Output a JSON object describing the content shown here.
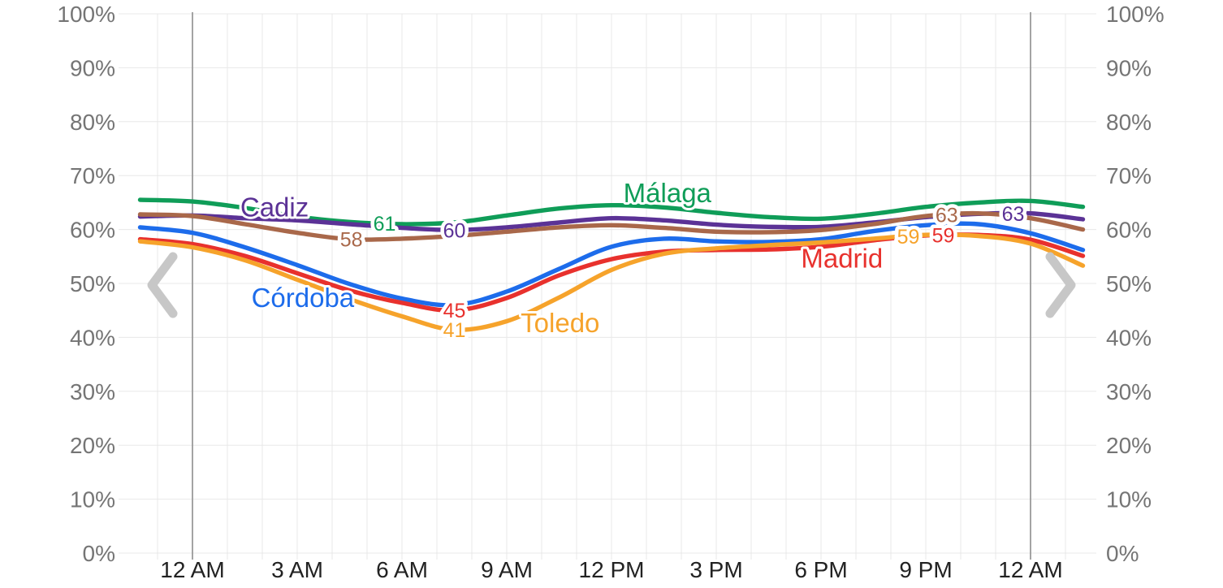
{
  "chart_data": {
    "type": "line",
    "title": "",
    "ylabel": "",
    "xlabel": "",
    "ylim": [
      0,
      100
    ],
    "y_ticks": [
      {
        "value": 0,
        "label": "0%"
      },
      {
        "value": 10,
        "label": "10%"
      },
      {
        "value": 20,
        "label": "20%"
      },
      {
        "value": 30,
        "label": "30%"
      },
      {
        "value": 40,
        "label": "40%"
      },
      {
        "value": 50,
        "label": "50%"
      },
      {
        "value": 60,
        "label": "60%"
      },
      {
        "value": 70,
        "label": "70%"
      },
      {
        "value": 80,
        "label": "80%"
      },
      {
        "value": 90,
        "label": "90%"
      },
      {
        "value": 100,
        "label": "100%"
      }
    ],
    "x_axis": {
      "unit": "hour",
      "range_hours": [
        -1.56,
        25.5
      ],
      "minor_grid_every_hours": 1,
      "ticks": [
        {
          "hour": 0,
          "label": "12 AM",
          "emphasized": true
        },
        {
          "hour": 3,
          "label": "3 AM",
          "emphasized": false
        },
        {
          "hour": 6,
          "label": "6 AM",
          "emphasized": false
        },
        {
          "hour": 9,
          "label": "9 AM",
          "emphasized": false
        },
        {
          "hour": 12,
          "label": "12 PM",
          "emphasized": false
        },
        {
          "hour": 15,
          "label": "3 PM",
          "emphasized": false
        },
        {
          "hour": 18,
          "label": "6 PM",
          "emphasized": false
        },
        {
          "hour": 21,
          "label": "9 PM",
          "emphasized": false
        },
        {
          "hour": 24,
          "label": "12 AM",
          "emphasized": true
        }
      ]
    },
    "sample_hours": [
      -1.5,
      0,
      1.5,
      3,
      4.5,
      6,
      7.5,
      9,
      10.5,
      12,
      13.5,
      15,
      16.5,
      18,
      19.5,
      21,
      22.5,
      24,
      25.5
    ],
    "series": [
      {
        "name": "Málaga",
        "color": "#0f9d58",
        "values": [
          65.5,
          65.2,
          64.0,
          62.4,
          61.4,
          61.0,
          61.3,
          62.6,
          63.9,
          64.5,
          64.1,
          63.1,
          62.3,
          62.0,
          62.9,
          64.2,
          65.0,
          65.3,
          64.2
        ],
        "name_label": {
          "hour": 13.6,
          "pct": 66.7
        },
        "point_labels": [
          {
            "hour": 5.5,
            "text": "61"
          }
        ]
      },
      {
        "name": "Cadiz",
        "color": "#5b3296",
        "values": [
          62.4,
          62.6,
          62.1,
          61.7,
          61.0,
          60.3,
          59.9,
          60.4,
          61.3,
          62.1,
          61.7,
          60.9,
          60.5,
          60.5,
          61.3,
          62.3,
          62.9,
          63.0,
          61.9
        ],
        "name_label": {
          "hour": 2.35,
          "pct": 64.1
        },
        "point_labels": [
          {
            "hour": 7.5,
            "text": "60"
          },
          {
            "hour": 23.5,
            "text": "63"
          }
        ]
      },
      {
        "name": "",
        "color": "#a9684a",
        "values": [
          62.8,
          62.5,
          61.0,
          59.4,
          58.2,
          58.3,
          58.8,
          59.6,
          60.4,
          60.8,
          60.3,
          59.6,
          59.5,
          59.9,
          61.0,
          62.5,
          63.0,
          62.1,
          60.0
        ],
        "point_labels": [
          {
            "hour": 4.55,
            "text": "58"
          },
          {
            "hour": 21.6,
            "text": "63"
          }
        ]
      },
      {
        "name": "Córdoba",
        "color": "#1d6ceb",
        "values": [
          60.4,
          59.4,
          56.7,
          53.4,
          49.9,
          47.2,
          46.0,
          48.5,
          52.7,
          56.8,
          58.3,
          57.8,
          57.7,
          58.2,
          59.7,
          60.8,
          61.0,
          59.3,
          56.2
        ],
        "name_label": {
          "hour": 3.16,
          "pct": 47.3
        },
        "point_labels": []
      },
      {
        "name": "Madrid",
        "color": "#e8312d",
        "values": [
          58.2,
          57.3,
          55.1,
          51.9,
          48.7,
          46.4,
          45.0,
          47.3,
          51.5,
          54.5,
          55.9,
          56.2,
          56.3,
          56.8,
          58.0,
          58.9,
          59.0,
          58.1,
          55.1
        ],
        "name_label": {
          "hour": 18.6,
          "pct": 54.6
        },
        "point_labels": [
          {
            "hour": 7.5,
            "text": "45"
          },
          {
            "hour": 21.5,
            "text": "59"
          }
        ]
      },
      {
        "name": "Toledo",
        "color": "#f6a32b",
        "values": [
          57.8,
          56.7,
          54.3,
          50.7,
          47.1,
          43.9,
          41.4,
          43.0,
          47.4,
          52.5,
          55.5,
          56.5,
          57.1,
          57.6,
          58.3,
          59.0,
          58.8,
          57.4,
          53.3
        ],
        "name_label": {
          "hour": 10.53,
          "pct": 42.6
        },
        "point_labels": [
          {
            "hour": 7.5,
            "text": "41"
          },
          {
            "hour": 20.5,
            "text": "59"
          }
        ]
      }
    ],
    "grid": {
      "minor_color": "#e8e8e8",
      "major_color": "#9a9a9a"
    },
    "axis_text_colors": {
      "y_labels": "#757575",
      "x_labels": "#222222"
    },
    "legend_position": "inline-labels",
    "grid_on": true
  },
  "nav": {
    "prev_icon": "chevron-left",
    "next_icon": "chevron-right",
    "icon_color": "#c7c7c7"
  }
}
